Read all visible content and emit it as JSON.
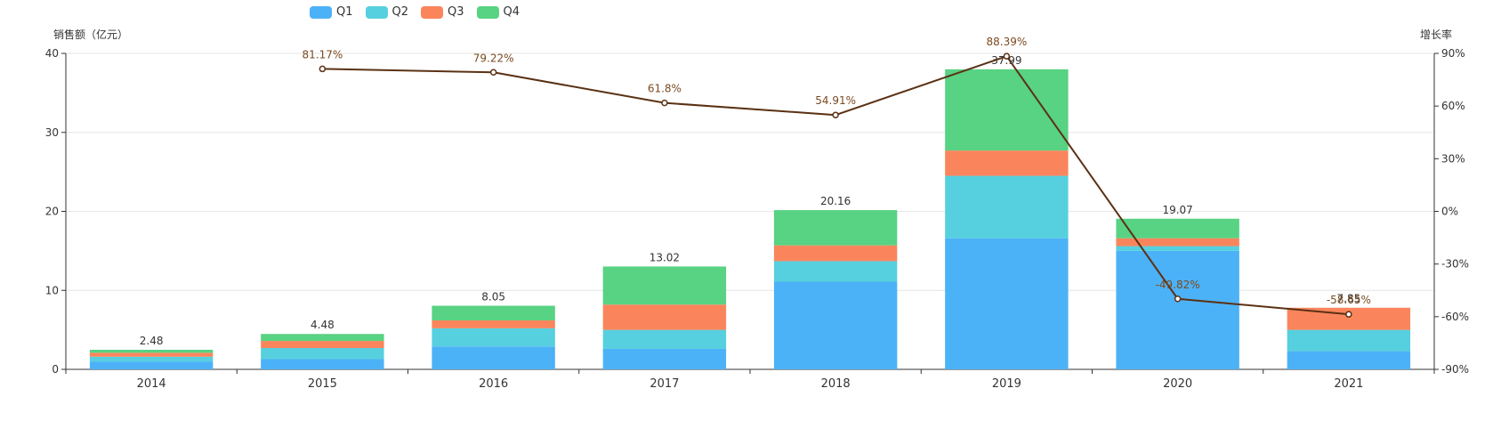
{
  "chart_data": {
    "type": "bar",
    "stacked": true,
    "categories": [
      "2014",
      "2015",
      "2016",
      "2017",
      "2018",
      "2019",
      "2020",
      "2021"
    ],
    "series": [
      {
        "name": "Q1",
        "type": "bar",
        "color": "#4cb2f7",
        "values": [
          1.0,
          1.3,
          2.9,
          2.6,
          11.1,
          16.6,
          15.0,
          2.3
        ]
      },
      {
        "name": "Q2",
        "type": "bar",
        "color": "#56d0de",
        "values": [
          0.6,
          1.4,
          2.3,
          2.4,
          2.6,
          7.9,
          0.6,
          2.7
        ]
      },
      {
        "name": "Q3",
        "type": "bar",
        "color": "#fa855c",
        "values": [
          0.5,
          0.9,
          1.0,
          3.2,
          2.0,
          3.2,
          1.0,
          2.8
        ]
      },
      {
        "name": "Q4",
        "type": "bar",
        "color": "#58d283",
        "values": [
          0.38,
          0.88,
          1.85,
          4.82,
          4.46,
          10.29,
          2.47,
          0.0
        ]
      },
      {
        "name": "增长率",
        "type": "line",
        "color": "#5b3114",
        "axis": "right",
        "values": [
          null,
          81.17,
          79.22,
          61.8,
          54.91,
          88.39,
          -49.82,
          -58.65
        ]
      }
    ],
    "totals": [
      2.48,
      4.48,
      8.05,
      13.02,
      20.16,
      37.99,
      19.07,
      7.85
    ],
    "total_labels": [
      "2.48",
      "4.48",
      "8.05",
      "13.02",
      "20.16",
      "37.99",
      "19.07",
      "7.85"
    ],
    "growth_labels": [
      "",
      "81.17%",
      "79.22%",
      "61.8%",
      "54.91%",
      "88.39%",
      "-49.82%",
      "-58.65%"
    ],
    "y_left": {
      "name": "销售额（亿元）",
      "min": 0,
      "max": 40,
      "ticks": [
        0,
        10,
        20,
        30,
        40
      ],
      "tick_labels": [
        "0",
        "10",
        "20",
        "30",
        "40"
      ]
    },
    "y_right": {
      "name": "增长率",
      "min": -90,
      "max": 90,
      "ticks": [
        -90,
        -60,
        -30,
        0,
        30,
        60,
        90
      ],
      "tick_labels": [
        "-90%",
        "-60%",
        "-30%",
        "0%",
        "30%",
        "60%",
        "90%"
      ]
    },
    "grid": true,
    "legend_placement": "top-left"
  }
}
